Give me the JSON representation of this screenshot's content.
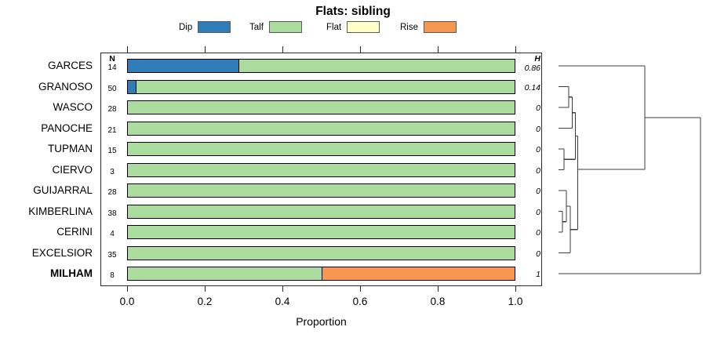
{
  "title": "Flats: sibling",
  "axis": {
    "xlabel": "Proportion",
    "tick_labels": [
      "0.0",
      "0.2",
      "0.4",
      "0.6",
      "0.8",
      "1.0"
    ]
  },
  "table_headers": {
    "n": "N",
    "h": "H"
  },
  "chart_data": {
    "type": "bar",
    "subtype": "horizontal_stacked_proportion",
    "title": "Flats: sibling",
    "xlabel": "Proportion",
    "xlim": [
      0,
      1
    ],
    "xticks": [
      0,
      0.2,
      0.4,
      0.6,
      0.8,
      1.0
    ],
    "grid": false,
    "legend_position": "top",
    "categories": [
      "GARCES",
      "GRANOSO",
      "WASCO",
      "PANOCHE",
      "TUPMAN",
      "CIERVO",
      "GUIJARRAL",
      "KIMBERLINA",
      "CERINI",
      "EXCELSIOR",
      "MILHAM"
    ],
    "bold_categories": [
      "MILHAM"
    ],
    "n_values": [
      14,
      50,
      28,
      21,
      15,
      3,
      28,
      38,
      4,
      35,
      8
    ],
    "h_values": [
      "0.86",
      "0.14",
      "0",
      "0",
      "0",
      "0",
      "0",
      "0",
      "0",
      "0",
      "1"
    ],
    "series": [
      {
        "name": "Dip",
        "color": "#2E7CB8",
        "values": [
          0.285,
          0.02,
          0,
          0,
          0,
          0,
          0,
          0,
          0,
          0,
          0
        ]
      },
      {
        "name": "Talf",
        "color": "#AADC9E",
        "values": [
          0.715,
          0.98,
          1,
          1,
          1,
          1,
          1,
          1,
          1,
          1,
          0.5
        ]
      },
      {
        "name": "Flat",
        "color": "#FFFFC8",
        "values": [
          0,
          0,
          0,
          0,
          0,
          0,
          0,
          0,
          0,
          0,
          0
        ]
      },
      {
        "name": "Rise",
        "color": "#F79750",
        "values": [
          0,
          0,
          0,
          0,
          0,
          0,
          0,
          0,
          0,
          0,
          0.5
        ]
      }
    ],
    "dendrogram": {
      "stroke": "#3d3d3d",
      "segments": [
        [
          712,
          84,
          822,
          84
        ],
        [
          712,
          110.5,
          725,
          110.5
        ],
        [
          712,
          137,
          725,
          137
        ],
        [
          725,
          110.5,
          725,
          137
        ],
        [
          725,
          123.8,
          729.5,
          123.8
        ],
        [
          712,
          163.5,
          729.5,
          163.5
        ],
        [
          729.5,
          123.8,
          729.5,
          163.5
        ],
        [
          729.5,
          143.6,
          733.5,
          143.6
        ],
        [
          712,
          190,
          719,
          190
        ],
        [
          712,
          216.5,
          719,
          216.5
        ],
        [
          719,
          190,
          719,
          216.5
        ],
        [
          719,
          203.2,
          733.5,
          203.2
        ],
        [
          733.5,
          143.6,
          733.5,
          203.2
        ],
        [
          733.5,
          173.4,
          736.5,
          173.4
        ],
        [
          712,
          269.5,
          717,
          269.5
        ],
        [
          712,
          296,
          717,
          296
        ],
        [
          717,
          269.5,
          717,
          296
        ],
        [
          717,
          282.8,
          722,
          282.8
        ],
        [
          712,
          243,
          722,
          243
        ],
        [
          722,
          243,
          722,
          282.8
        ],
        [
          722,
          262.9,
          727,
          262.9
        ],
        [
          712,
          322.5,
          727,
          322.5
        ],
        [
          727,
          262.9,
          727,
          322.5
        ],
        [
          727,
          292.7,
          736.5,
          292.7
        ],
        [
          736.5,
          173.4,
          736.5,
          292.7
        ],
        [
          736.5,
          216,
          822,
          216
        ],
        [
          822,
          84,
          822,
          216
        ],
        [
          822,
          150,
          893,
          150
        ],
        [
          712,
          349,
          893,
          349
        ],
        [
          893,
          150,
          893,
          349
        ]
      ]
    }
  }
}
